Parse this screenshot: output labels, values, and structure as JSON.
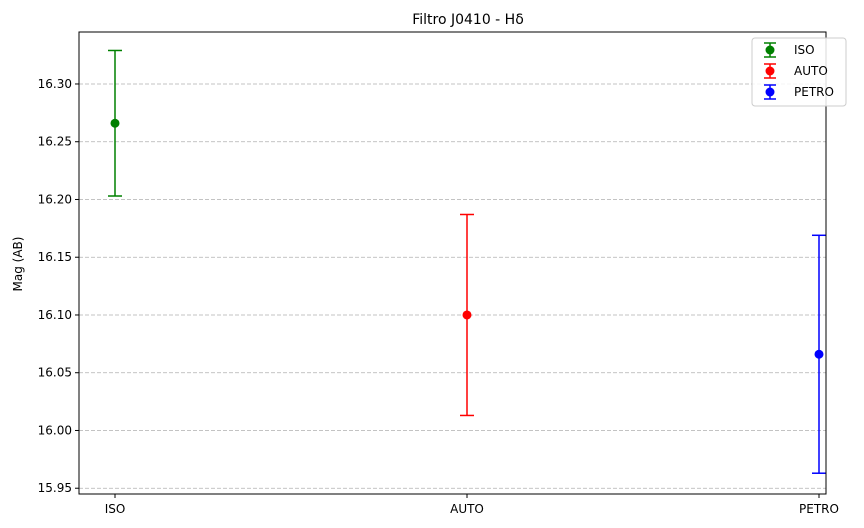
{
  "chart_data": {
    "type": "scatter",
    "title": "Filtro J0410 - Hδ",
    "xlabel": "",
    "ylabel": "Mag (AB)",
    "categories": [
      "ISO",
      "AUTO",
      "PETRO"
    ],
    "ylim": [
      15.945,
      16.345
    ],
    "yticks": [
      "15.95",
      "16.00",
      "16.05",
      "16.10",
      "16.15",
      "16.20",
      "16.25",
      "16.30"
    ],
    "grid": "horizontal dashed",
    "legend": "top-right",
    "series": [
      {
        "name": "ISO",
        "category": "ISO",
        "value": 16.266,
        "error": 0.063,
        "color": "#008000"
      },
      {
        "name": "AUTO",
        "category": "AUTO",
        "value": 16.1,
        "error": 0.087,
        "color": "#ff0000"
      },
      {
        "name": "PETRO",
        "category": "PETRO",
        "value": 16.066,
        "error": 0.103,
        "color": "#0000ff"
      }
    ]
  }
}
